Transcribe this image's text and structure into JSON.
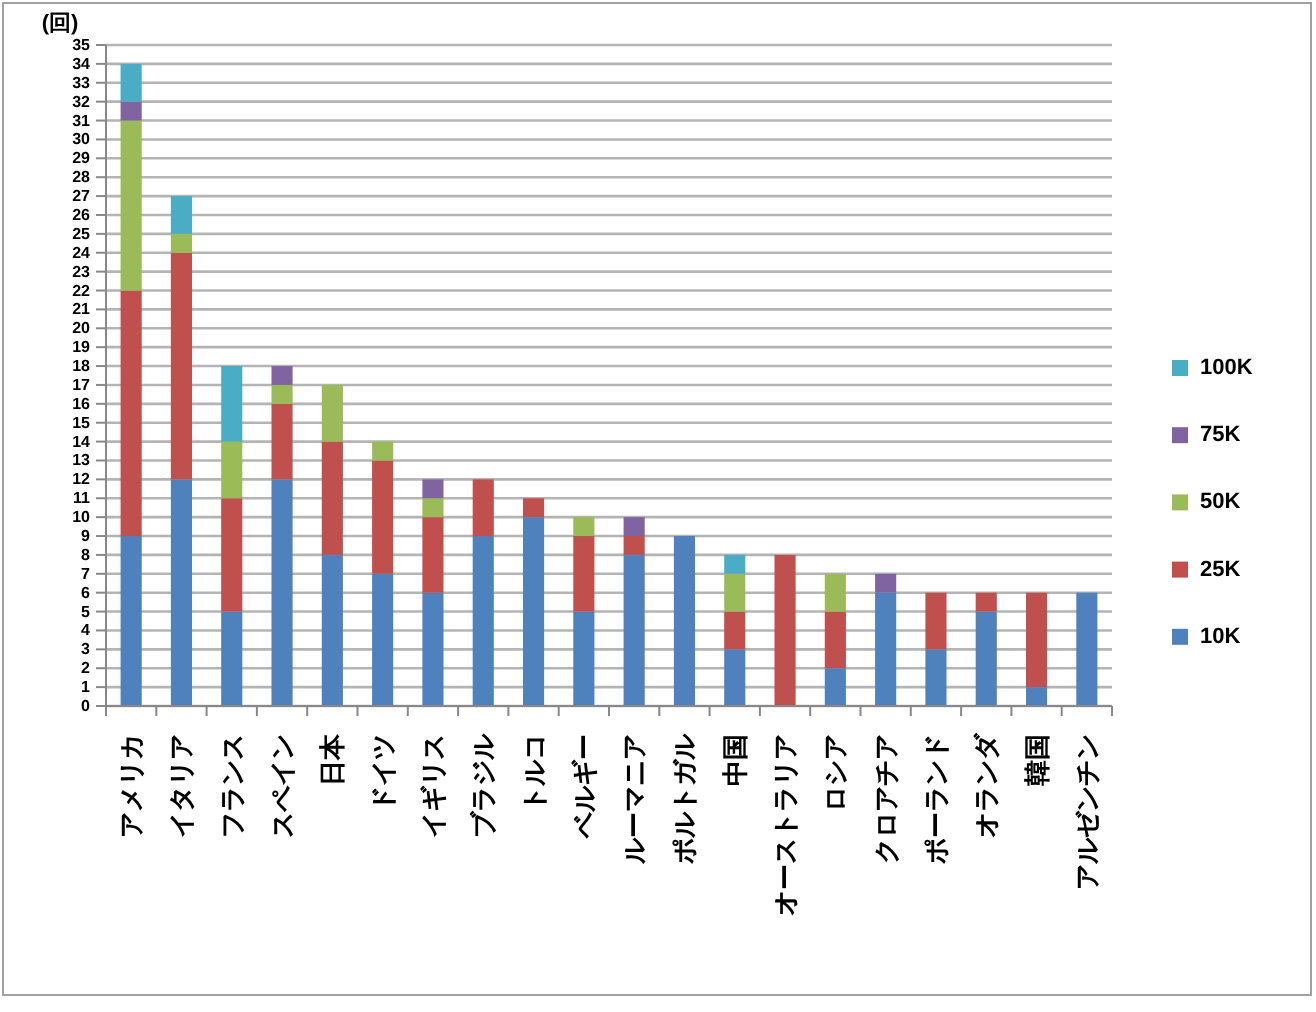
{
  "chart_data": {
    "type": "bar",
    "stacked": true,
    "ylabel": "(回)",
    "categories": [
      "アメリカ",
      "イタリア",
      "フランス",
      "スペイン",
      "日本",
      "ドイツ",
      "イギリス",
      "ブラジル",
      "トルコ",
      "ベルギー",
      "ルーマニア",
      "ポルトガル",
      "中国",
      "オーストラリア",
      "ロシア",
      "クロアチア",
      "ポーランド",
      "オランダ",
      "韓国",
      "アルゼンチン"
    ],
    "series": [
      {
        "name": "10K",
        "color": "#4f81bd",
        "values": [
          9,
          12,
          5,
          12,
          8,
          7,
          6,
          9,
          10,
          5,
          8,
          9,
          3,
          0,
          2,
          6,
          3,
          5,
          1,
          6
        ]
      },
      {
        "name": "25K",
        "color": "#c0504d",
        "values": [
          13,
          12,
          6,
          4,
          6,
          6,
          4,
          3,
          1,
          4,
          1,
          0,
          2,
          8,
          3,
          0,
          3,
          1,
          5,
          0
        ]
      },
      {
        "name": "50K",
        "color": "#9bbb59",
        "values": [
          9,
          1,
          3,
          1,
          3,
          1,
          1,
          0,
          0,
          1,
          0,
          0,
          2,
          0,
          2,
          0,
          0,
          0,
          0,
          0
        ]
      },
      {
        "name": "75K",
        "color": "#8064a2",
        "values": [
          1,
          0,
          0,
          1,
          0,
          0,
          1,
          0,
          0,
          0,
          1,
          0,
          0,
          0,
          0,
          1,
          0,
          0,
          0,
          0
        ]
      },
      {
        "name": "100K",
        "color": "#4bacc6",
        "values": [
          2,
          2,
          4,
          0,
          0,
          0,
          0,
          0,
          0,
          0,
          0,
          0,
          1,
          0,
          0,
          0,
          0,
          0,
          0,
          0
        ]
      }
    ],
    "ylim": [
      0,
      35
    ],
    "yticks": [
      0,
      1,
      2,
      3,
      4,
      5,
      6,
      7,
      8,
      9,
      10,
      11,
      12,
      13,
      14,
      15,
      16,
      17,
      18,
      19,
      20,
      21,
      22,
      23,
      24,
      25,
      26,
      27,
      28,
      29,
      30,
      31,
      32,
      33,
      34,
      35
    ],
    "grid": "y",
    "legend": "right"
  }
}
